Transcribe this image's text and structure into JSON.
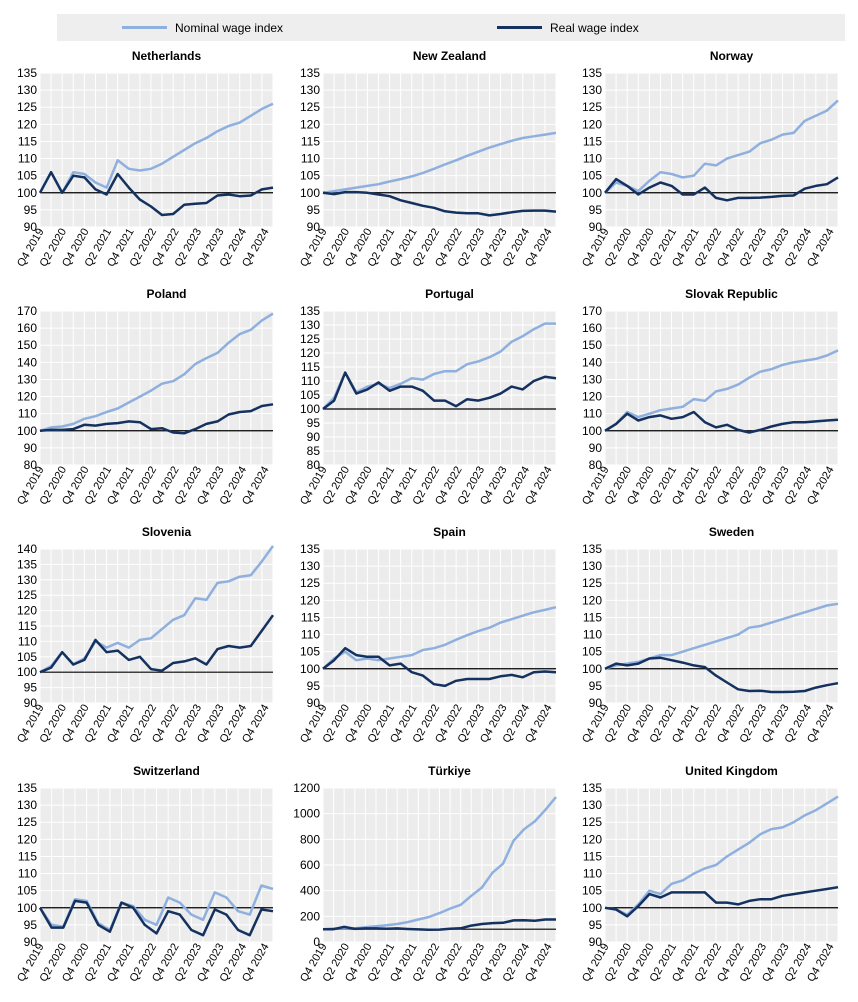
{
  "legend": {
    "nominal_label": "Nominal wage index",
    "real_label": "Real wage index",
    "position": "top"
  },
  "colors": {
    "nominal": "#8fb0de",
    "real": "#14315f",
    "baseline": "#000000",
    "grid": "#e6e6e6",
    "panel_bg": "#ececec"
  },
  "x_tick_labels": [
    "Q4 2019",
    "Q2 2020",
    "Q4 2020",
    "Q2 2021",
    "Q4 2021",
    "Q2 2022",
    "Q4 2022",
    "Q2 2023",
    "Q4 2023",
    "Q2 2024",
    "Q4 2024"
  ],
  "chart_data": [
    {
      "type": "line",
      "title": "Netherlands",
      "ylim": [
        90,
        135
      ],
      "yticks": [
        90,
        95,
        100,
        105,
        110,
        115,
        120,
        125,
        130,
        135
      ],
      "baseline": 100,
      "series": [
        {
          "name": "Nominal wage index",
          "values": [
            100,
            106,
            100,
            106,
            105.5,
            103,
            101.5,
            109.5,
            107,
            106.5,
            107,
            108.5,
            110.5,
            112.5,
            114.5,
            116,
            118,
            119.5,
            120.5,
            122.5,
            124.5,
            126
          ]
        },
        {
          "name": "Real wage index",
          "values": [
            100,
            106,
            100,
            105,
            104.5,
            101,
            99.5,
            105.5,
            101.5,
            98,
            96,
            93.5,
            93.8,
            96.5,
            96.8,
            97,
            99.2,
            99.5,
            99,
            99.2,
            101,
            101.5
          ]
        }
      ]
    },
    {
      "type": "line",
      "title": "New Zealand",
      "ylim": [
        90,
        135
      ],
      "yticks": [
        90,
        95,
        100,
        105,
        110,
        115,
        120,
        125,
        130,
        135
      ],
      "baseline": 100,
      "series": [
        {
          "name": "Nominal wage index",
          "values": [
            100,
            100.5,
            101,
            101.5,
            102,
            102.5,
            103.3,
            104,
            104.8,
            105.8,
            107,
            108.3,
            109.5,
            110.8,
            112,
            113.2,
            114.2,
            115.2,
            116,
            116.5,
            117,
            117.5
          ]
        },
        {
          "name": "Real wage index",
          "values": [
            100,
            99.6,
            100.2,
            100.2,
            100,
            99.5,
            99,
            97.8,
            97,
            96.2,
            95.6,
            94.6,
            94.2,
            94,
            94,
            93.4,
            93.8,
            94.3,
            94.7,
            94.8,
            94.8,
            94.5
          ]
        }
      ]
    },
    {
      "type": "line",
      "title": "Norway",
      "ylim": [
        90,
        135
      ],
      "yticks": [
        90,
        95,
        100,
        105,
        110,
        115,
        120,
        125,
        130,
        135
      ],
      "baseline": 100,
      "series": [
        {
          "name": "Nominal wage index",
          "values": [
            100,
            103,
            102,
            100.5,
            103.5,
            106,
            105.5,
            104.5,
            105,
            108.5,
            108,
            110,
            111,
            112,
            114.5,
            115.5,
            117,
            117.5,
            121,
            122.5,
            124,
            127
          ]
        },
        {
          "name": "Real wage index",
          "values": [
            100,
            104,
            102,
            99.5,
            101.5,
            103,
            102,
            99.5,
            99.5,
            101.5,
            98.5,
            97.8,
            98.5,
            98.5,
            98.6,
            98.8,
            99.1,
            99.2,
            101.2,
            102,
            102.5,
            104.5
          ]
        }
      ]
    },
    {
      "type": "line",
      "title": "Poland",
      "ylim": [
        80,
        170
      ],
      "yticks": [
        80,
        90,
        100,
        110,
        120,
        130,
        140,
        150,
        160,
        170
      ],
      "baseline": 100,
      "series": [
        {
          "name": "Nominal wage index",
          "values": [
            100,
            102,
            102.5,
            104,
            107,
            108.5,
            111,
            113,
            116.5,
            120,
            123.5,
            127.5,
            129,
            133,
            139,
            142.5,
            145.5,
            151.5,
            156.5,
            159,
            164.5,
            168.5
          ]
        },
        {
          "name": "Real wage index",
          "values": [
            100,
            100.5,
            100.5,
            101,
            103.5,
            103,
            104,
            104.5,
            105.5,
            105,
            101,
            101.5,
            99,
            98.5,
            101,
            104,
            105.5,
            109.5,
            111,
            111.5,
            114.5,
            115.5
          ]
        }
      ]
    },
    {
      "type": "line",
      "title": "Portugal",
      "ylim": [
        80,
        135
      ],
      "yticks": [
        80,
        85,
        90,
        95,
        100,
        105,
        110,
        115,
        120,
        125,
        130,
        135
      ],
      "baseline": 100,
      "series": [
        {
          "name": "Nominal wage index",
          "values": [
            100,
            104,
            113,
            106,
            108,
            109,
            107.5,
            109,
            111,
            110.5,
            112.5,
            113.5,
            113.5,
            116,
            117,
            118.5,
            120.5,
            124,
            126,
            128.5,
            130.5,
            130.5
          ]
        },
        {
          "name": "Real wage index",
          "values": [
            100,
            103,
            113,
            105.5,
            107,
            109.5,
            106.5,
            108,
            108,
            106.5,
            103,
            103,
            101,
            103.5,
            103,
            104,
            105.5,
            108,
            107,
            110,
            111.5,
            111
          ]
        }
      ]
    },
    {
      "type": "line",
      "title": "Slovak Republic",
      "ylim": [
        80,
        170
      ],
      "yticks": [
        80,
        90,
        100,
        110,
        120,
        130,
        140,
        150,
        160,
        170
      ],
      "baseline": 100,
      "series": [
        {
          "name": "Nominal wage index",
          "values": [
            100,
            104,
            111,
            108,
            110,
            112,
            113,
            114,
            118.5,
            117.5,
            123,
            124.5,
            127,
            131,
            134.5,
            136,
            138.5,
            140,
            141,
            142,
            144,
            147
          ]
        },
        {
          "name": "Real wage index",
          "values": [
            100,
            104,
            110,
            106,
            108,
            109,
            107,
            108,
            111,
            105,
            102,
            103.5,
            100.5,
            99,
            100.5,
            102.5,
            104,
            105,
            105,
            105.5,
            106,
            106.5
          ]
        }
      ]
    },
    {
      "type": "line",
      "title": "Slovenia",
      "ylim": [
        90,
        140
      ],
      "yticks": [
        90,
        95,
        100,
        105,
        110,
        115,
        120,
        125,
        130,
        135,
        140
      ],
      "baseline": 100,
      "series": [
        {
          "name": "Nominal wage index",
          "values": [
            100,
            102,
            106.5,
            102.5,
            104.5,
            110,
            108,
            109.5,
            108,
            110.5,
            111,
            114,
            117,
            118.5,
            124,
            123.5,
            129,
            129.5,
            131,
            131.5,
            136,
            141
          ]
        },
        {
          "name": "Real wage index",
          "values": [
            100,
            101.5,
            106.5,
            102.5,
            104,
            110.5,
            106.5,
            107,
            104,
            105,
            101,
            100.5,
            103,
            103.5,
            104.5,
            102.5,
            107.5,
            108.5,
            108,
            108.5,
            113.5,
            118.5
          ]
        }
      ]
    },
    {
      "type": "line",
      "title": "Spain",
      "ylim": [
        90,
        135
      ],
      "yticks": [
        90,
        95,
        100,
        105,
        110,
        115,
        120,
        125,
        130,
        135
      ],
      "baseline": 100,
      "series": [
        {
          "name": "Nominal wage index",
          "values": [
            100,
            103,
            105,
            102.5,
            103,
            102.5,
            103,
            103.5,
            104,
            105.5,
            106,
            107,
            108.5,
            109.8,
            111,
            112,
            113.5,
            114.5,
            115.5,
            116.5,
            117.2,
            118
          ]
        },
        {
          "name": "Real wage index",
          "values": [
            100,
            102.5,
            106,
            104,
            103.5,
            103.5,
            101,
            101.5,
            99,
            98,
            95.5,
            95,
            96.5,
            97,
            97,
            97,
            97.8,
            98.2,
            97.5,
            99,
            99.2,
            99
          ]
        }
      ]
    },
    {
      "type": "line",
      "title": "Sweden",
      "ylim": [
        90,
        135
      ],
      "yticks": [
        90,
        95,
        100,
        105,
        110,
        115,
        120,
        125,
        130,
        135
      ],
      "baseline": 100,
      "series": [
        {
          "name": "Nominal wage index",
          "values": [
            100,
            101,
            101.5,
            102,
            103,
            104,
            104,
            105,
            106,
            107,
            108,
            109,
            110,
            112,
            112.5,
            113.5,
            114.5,
            115.5,
            116.5,
            117.5,
            118.5,
            119
          ]
        },
        {
          "name": "Real wage index",
          "values": [
            100,
            101.5,
            101,
            101.5,
            103,
            103.2,
            102.5,
            101.8,
            101,
            100.5,
            98,
            96,
            94,
            93.5,
            93.6,
            93.2,
            93.2,
            93.3,
            93.5,
            94.5,
            95.2,
            95.8
          ]
        }
      ]
    },
    {
      "type": "line",
      "title": "Switzerland",
      "ylim": [
        90,
        135
      ],
      "yticks": [
        90,
        95,
        100,
        105,
        110,
        115,
        120,
        125,
        130,
        135
      ],
      "baseline": 100,
      "series": [
        {
          "name": "Nominal wage index",
          "values": [
            100,
            95,
            94.5,
            102.5,
            102,
            95.5,
            93.5,
            101.5,
            100.5,
            96.5,
            95,
            103,
            101.5,
            98,
            96.5,
            104.5,
            103,
            99,
            98,
            106.5,
            105.5
          ]
        },
        {
          "name": "Real wage index",
          "values": [
            100,
            94.2,
            94.2,
            102,
            101.5,
            95,
            93,
            101.5,
            100,
            95,
            92.5,
            99,
            98,
            93.5,
            92,
            99.5,
            98,
            93.5,
            92,
            99.5,
            99
          ]
        }
      ]
    },
    {
      "type": "line",
      "title": "Türkiye",
      "ylim": [
        0,
        1200
      ],
      "yticks": [
        0,
        200,
        400,
        600,
        800,
        1000,
        1200
      ],
      "baseline": 100,
      "series": [
        {
          "name": "Nominal wage index",
          "values": [
            100,
            105,
            108,
            106,
            115,
            122,
            130,
            140,
            155,
            175,
            195,
            225,
            260,
            290,
            360,
            425,
            540,
            610,
            790,
            880,
            940,
            1030,
            1130
          ]
        },
        {
          "name": "Real wage index",
          "values": [
            100,
            100,
            118,
            102,
            106,
            106,
            104,
            106,
            101,
            98,
            95,
            97,
            103,
            107,
            128,
            140,
            147,
            150,
            168,
            170,
            165,
            175,
            175
          ]
        }
      ]
    },
    {
      "type": "line",
      "title": "United Kingdom",
      "ylim": [
        90,
        135
      ],
      "yticks": [
        90,
        95,
        100,
        105,
        110,
        115,
        120,
        125,
        130,
        135
      ],
      "baseline": 100,
      "series": [
        {
          "name": "Nominal wage index",
          "values": [
            100,
            99.5,
            98,
            101,
            105,
            104,
            107,
            108,
            110,
            111.5,
            112.5,
            115,
            117,
            119,
            121.5,
            123,
            123.5,
            125,
            127,
            128.5,
            130.5,
            132.5
          ]
        },
        {
          "name": "Real wage index",
          "values": [
            100,
            99.5,
            97.5,
            100.5,
            104,
            103,
            104.5,
            104.5,
            104.5,
            104.5,
            101.5,
            101.5,
            101,
            102,
            102.5,
            102.5,
            103.5,
            104,
            104.5,
            105,
            105.5,
            106
          ]
        }
      ]
    }
  ]
}
